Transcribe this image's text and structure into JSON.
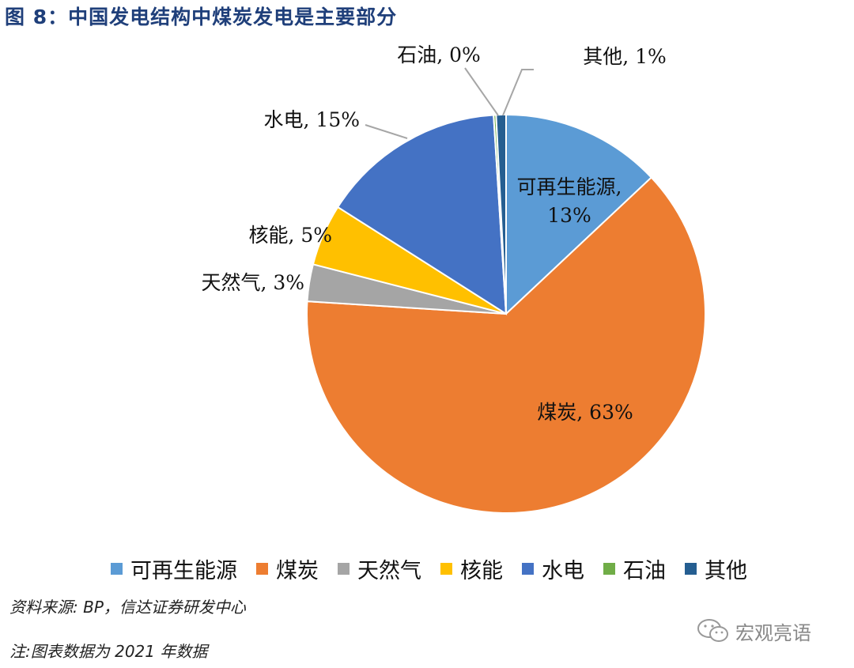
{
  "title": "图 8：中国发电结构中煤炭发电是主要部分",
  "chart_data": {
    "type": "pie",
    "slices": [
      {
        "name": "可再生能源",
        "value": 13,
        "label": "可再生能源,",
        "label2": "13%",
        "color": "#5b9bd5"
      },
      {
        "name": "煤炭",
        "value": 63,
        "label": "煤炭, 63%",
        "color": "#ed7d31"
      },
      {
        "name": "天然气",
        "value": 3,
        "label": "天然气, 3%",
        "color": "#a5a5a5"
      },
      {
        "name": "核能",
        "value": 5,
        "label": "核能, 5%",
        "color": "#ffc000"
      },
      {
        "name": "水电",
        "value": 15,
        "label": "水电, 15%",
        "color": "#4472c4"
      },
      {
        "name": "石油",
        "value": 0.2,
        "label": "石油, 0%",
        "color": "#70ad47"
      },
      {
        "name": "其他",
        "value": 0.8,
        "label": "其他, 1%",
        "color": "#255e91"
      }
    ],
    "legend_position": "bottom"
  },
  "source": "资料来源: BP，信达证券研发中心",
  "note": "注:图表数据为 2021 年数据",
  "watermark": "宏观亮语"
}
